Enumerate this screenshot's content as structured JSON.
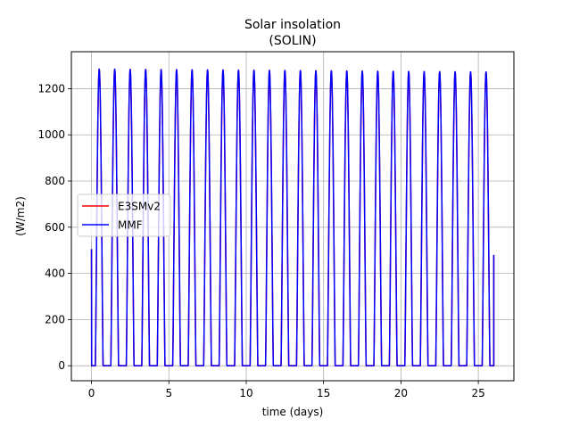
{
  "chart_data": {
    "type": "line",
    "title": "Solar insolation",
    "subtitle": "(SOLIN)",
    "xlabel": "time (days)",
    "ylabel": "(W/m2)",
    "xlim": [
      -1.3,
      27.3
    ],
    "ylim": [
      -65,
      1360
    ],
    "xticks": [
      0,
      5,
      10,
      15,
      20,
      25
    ],
    "yticks": [
      0,
      200,
      400,
      600,
      800,
      1000,
      1200
    ],
    "grid": true,
    "legend_position": "center-left",
    "days": 26,
    "start_value": 505,
    "end_value": 480,
    "series": [
      {
        "name": "E3SMv2",
        "color": "#ff0000",
        "peak_start": 1285,
        "peak_end": 1272,
        "daylight_fraction": 0.5
      },
      {
        "name": "MMF",
        "color": "#0000ff",
        "peak_start": 1285,
        "peak_end": 1272,
        "daylight_fraction": 0.5
      }
    ]
  }
}
